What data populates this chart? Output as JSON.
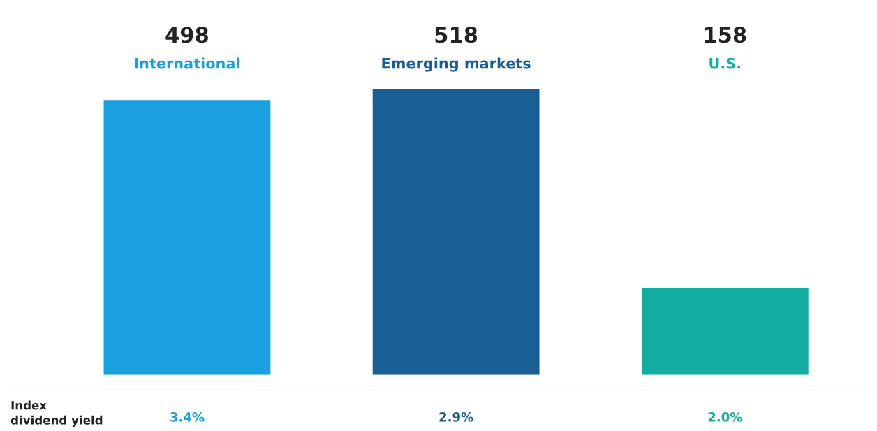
{
  "chart_data": {
    "type": "bar",
    "categories": [
      "International",
      "Emerging markets",
      "U.S."
    ],
    "values": [
      498,
      518,
      158
    ],
    "colors": [
      "#1a9fe0",
      "#1a5e96",
      "#12aca0"
    ],
    "data_labels": true,
    "tick_labels": false,
    "annotations": [
      "Index\ndividend yield",
      "3.4%",
      "2.9%",
      "2.0%"
    ]
  }
}
